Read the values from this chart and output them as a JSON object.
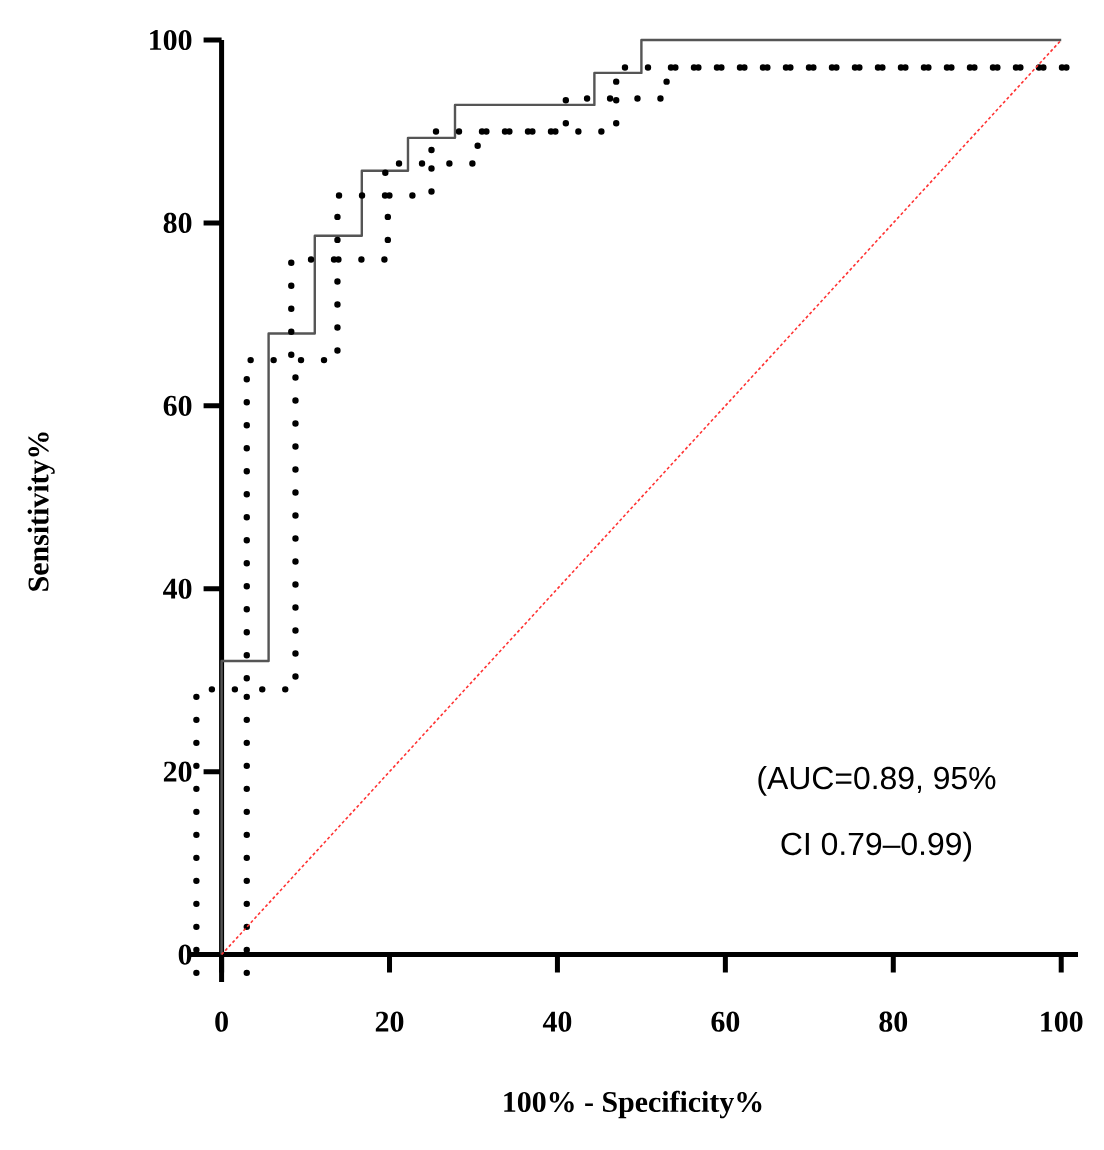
{
  "chart_data": {
    "type": "line",
    "xlabel": "100% - Specificity%",
    "ylabel": "Sensitivity%",
    "xlim": [
      -4,
      102
    ],
    "ylim": [
      -3,
      100
    ],
    "xticks": [
      0,
      20,
      40,
      60,
      80,
      100
    ],
    "yticks": [
      0,
      20,
      40,
      60,
      80,
      100
    ],
    "marker": "none",
    "series": [
      {
        "color": "#555555",
        "line_style": "solid",
        "x": [
          0,
          0,
          5.6,
          5.6,
          11.1,
          11.1,
          16.7,
          16.7,
          22.2,
          22.2,
          27.8,
          27.8,
          44.4,
          44.4,
          50,
          50,
          100
        ],
        "values": [
          0,
          32.1,
          32.1,
          67.9,
          67.9,
          78.6,
          78.6,
          85.7,
          85.7,
          89.3,
          89.3,
          92.9,
          92.9,
          96.4,
          96.4,
          100,
          100
        ]
      },
      {
        "color": "#000000",
        "line_style": "dotted",
        "x": [
          -3,
          -3,
          3,
          3,
          8.3,
          8.3,
          13.8,
          13.8,
          19.5,
          19.5,
          25,
          25,
          41,
          41,
          47,
          47,
          102
        ],
        "values": [
          -2,
          29,
          29,
          65,
          65,
          76,
          76,
          83,
          83,
          86.5,
          86.5,
          90,
          90,
          93.6,
          93.6,
          97,
          97
        ]
      },
      {
        "color": "#000000",
        "line_style": "dotted",
        "x": [
          3,
          3,
          8.8,
          8.8,
          13.8,
          13.8,
          19.8,
          19.8,
          25,
          25,
          30.5,
          30.5,
          47,
          47,
          53,
          53,
          102
        ],
        "values": [
          -2,
          29,
          29,
          65,
          65,
          76,
          76,
          83,
          83,
          86.5,
          86.5,
          90,
          90,
          93.6,
          93.6,
          97,
          97
        ]
      },
      {
        "color": "#ff3333",
        "line_style": "dashed",
        "x": [
          0,
          100
        ],
        "values": [
          0,
          100
        ]
      }
    ],
    "annotations": [
      "(AUC=0.89, 95%",
      "CI 0.79–0.99)"
    ]
  }
}
